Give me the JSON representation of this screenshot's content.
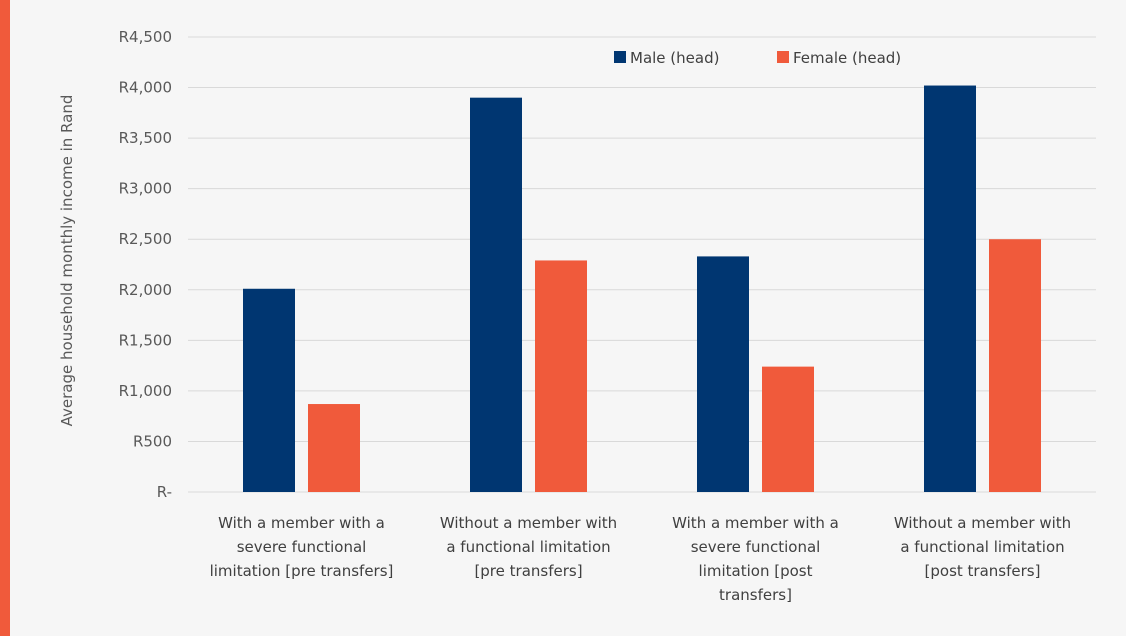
{
  "chart_data": {
    "type": "bar",
    "title": "",
    "ylabel": "Average household monthly income in Rand",
    "xlabel": "",
    "ylim": [
      0,
      4500
    ],
    "yticks": [
      {
        "value": 0,
        "label": "R-"
      },
      {
        "value": 500,
        "label": "R500"
      },
      {
        "value": 1000,
        "label": "R1,000"
      },
      {
        "value": 1500,
        "label": "R1,500"
      },
      {
        "value": 2000,
        "label": "R2,000"
      },
      {
        "value": 2500,
        "label": "R2,500"
      },
      {
        "value": 3000,
        "label": "R3,000"
      },
      {
        "value": 3500,
        "label": "R3,500"
      },
      {
        "value": 4000,
        "label": "R4,000"
      },
      {
        "value": 4500,
        "label": "R4,500"
      }
    ],
    "categories": [
      [
        "With a member with a",
        "severe functional",
        "limitation [pre transfers]"
      ],
      [
        "Without a member with",
        "a functional limitation",
        "[pre transfers]"
      ],
      [
        "With a member with a",
        "severe functional",
        "limitation [post",
        "transfers]"
      ],
      [
        "Without a member with",
        "a functional limitation",
        "[post transfers]"
      ]
    ],
    "series": [
      {
        "name": "Male (head)",
        "color": "#003671",
        "values": [
          2010,
          3900,
          2330,
          4020
        ]
      },
      {
        "name": "Female (head)",
        "color": "#f05a3b",
        "values": [
          870,
          2290,
          1240,
          2500
        ]
      }
    ],
    "grid": true,
    "legend_position": "top-right"
  },
  "frame": {
    "accent_color": "#f05a3b",
    "background": "#f6f6f6"
  }
}
